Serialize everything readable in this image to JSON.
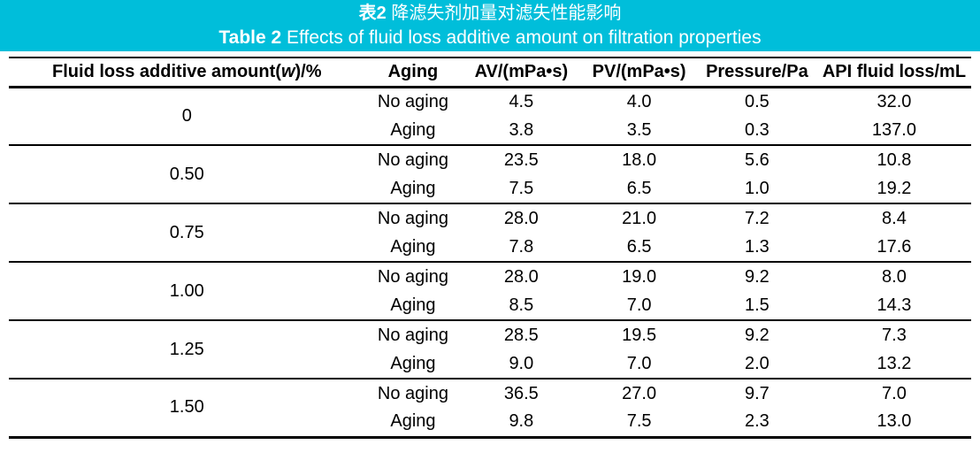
{
  "colors": {
    "band": "#00BEDA",
    "title_text": "#FFFFFF",
    "rule": "#000000",
    "text": "#000000"
  },
  "title": {
    "zh_label": "表2",
    "zh_text": "降滤失剂加量对滤失性能影响",
    "en_label": "Table 2",
    "en_text": "Effects of fluid loss additive amount on filtration properties"
  },
  "table": {
    "columns": {
      "amount_prefix": "Fluid loss additive amount(",
      "amount_symbol": "w",
      "amount_suffix": ")/%",
      "aging": "Aging",
      "av": "AV/(mPa•s)",
      "pv": "PV/(mPa•s)",
      "pressure": "Pressure/Pa",
      "api": "API fluid loss/mL"
    },
    "groups": [
      {
        "amount": "0",
        "rows": [
          {
            "aging": "No aging",
            "av": "4.5",
            "pv": "4.0",
            "pressure": "0.5",
            "api": "32.0"
          },
          {
            "aging": "Aging",
            "av": "3.8",
            "pv": "3.5",
            "pressure": "0.3",
            "api": "137.0"
          }
        ]
      },
      {
        "amount": "0.50",
        "rows": [
          {
            "aging": "No aging",
            "av": "23.5",
            "pv": "18.0",
            "pressure": "5.6",
            "api": "10.8"
          },
          {
            "aging": "Aging",
            "av": "7.5",
            "pv": "6.5",
            "pressure": "1.0",
            "api": "19.2"
          }
        ]
      },
      {
        "amount": "0.75",
        "rows": [
          {
            "aging": "No aging",
            "av": "28.0",
            "pv": "21.0",
            "pressure": "7.2",
            "api": "8.4"
          },
          {
            "aging": "Aging",
            "av": "7.8",
            "pv": "6.5",
            "pressure": "1.3",
            "api": "17.6"
          }
        ]
      },
      {
        "amount": "1.00",
        "rows": [
          {
            "aging": "No aging",
            "av": "28.0",
            "pv": "19.0",
            "pressure": "9.2",
            "api": "8.0"
          },
          {
            "aging": "Aging",
            "av": "8.5",
            "pv": "7.0",
            "pressure": "1.5",
            "api": "14.3"
          }
        ]
      },
      {
        "amount": "1.25",
        "rows": [
          {
            "aging": "No aging",
            "av": "28.5",
            "pv": "19.5",
            "pressure": "9.2",
            "api": "7.3"
          },
          {
            "aging": "Aging",
            "av": "9.0",
            "pv": "7.0",
            "pressure": "2.0",
            "api": "13.2"
          }
        ]
      },
      {
        "amount": "1.50",
        "rows": [
          {
            "aging": "No aging",
            "av": "36.5",
            "pv": "27.0",
            "pressure": "9.7",
            "api": "7.0"
          },
          {
            "aging": "Aging",
            "av": "9.8",
            "pv": "7.5",
            "pressure": "2.3",
            "api": "13.0"
          }
        ]
      }
    ]
  }
}
